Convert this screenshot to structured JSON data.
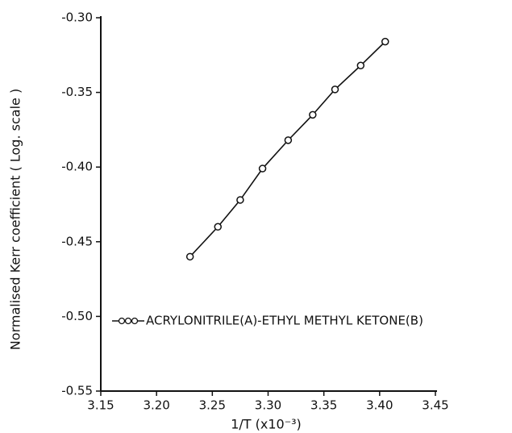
{
  "chart_data": {
    "type": "line",
    "x_label": "1/T (x10⁻³)",
    "y_label": "Normalised Kerr coefficient ( Log. scale )",
    "x": [
      3.23,
      3.255,
      3.275,
      3.295,
      3.318,
      3.34,
      3.36,
      3.383,
      3.405
    ],
    "series": [
      {
        "name": "ACRYLONITRILE(A)-ETHYL METHYL KETONE(B)",
        "color": "#111111",
        "values": [
          -0.46,
          -0.44,
          -0.422,
          -0.401,
          -0.382,
          -0.365,
          -0.348,
          -0.332,
          -0.316
        ]
      }
    ],
    "xlim": [
      3.15,
      3.45
    ],
    "xticks": [
      3.15,
      {
        "value": 3.2,
        "label": "3.20"
      },
      3.25,
      {
        "value": 3.3,
        "label": "3.30"
      },
      3.35,
      {
        "value": 3.4,
        "label": "3.40"
      },
      3.45
    ],
    "ylim": [
      -0.55,
      -0.3
    ],
    "yticks": [
      {
        "value": -0.55,
        "label": "-0.55"
      },
      {
        "value": -0.5,
        "label": "-0.50"
      },
      -0.45,
      {
        "value": -0.4,
        "label": "-0.40"
      },
      -0.35,
      {
        "value": -0.3,
        "label": "-0.30"
      }
    ],
    "legend": "lower left",
    "grid": false
  }
}
